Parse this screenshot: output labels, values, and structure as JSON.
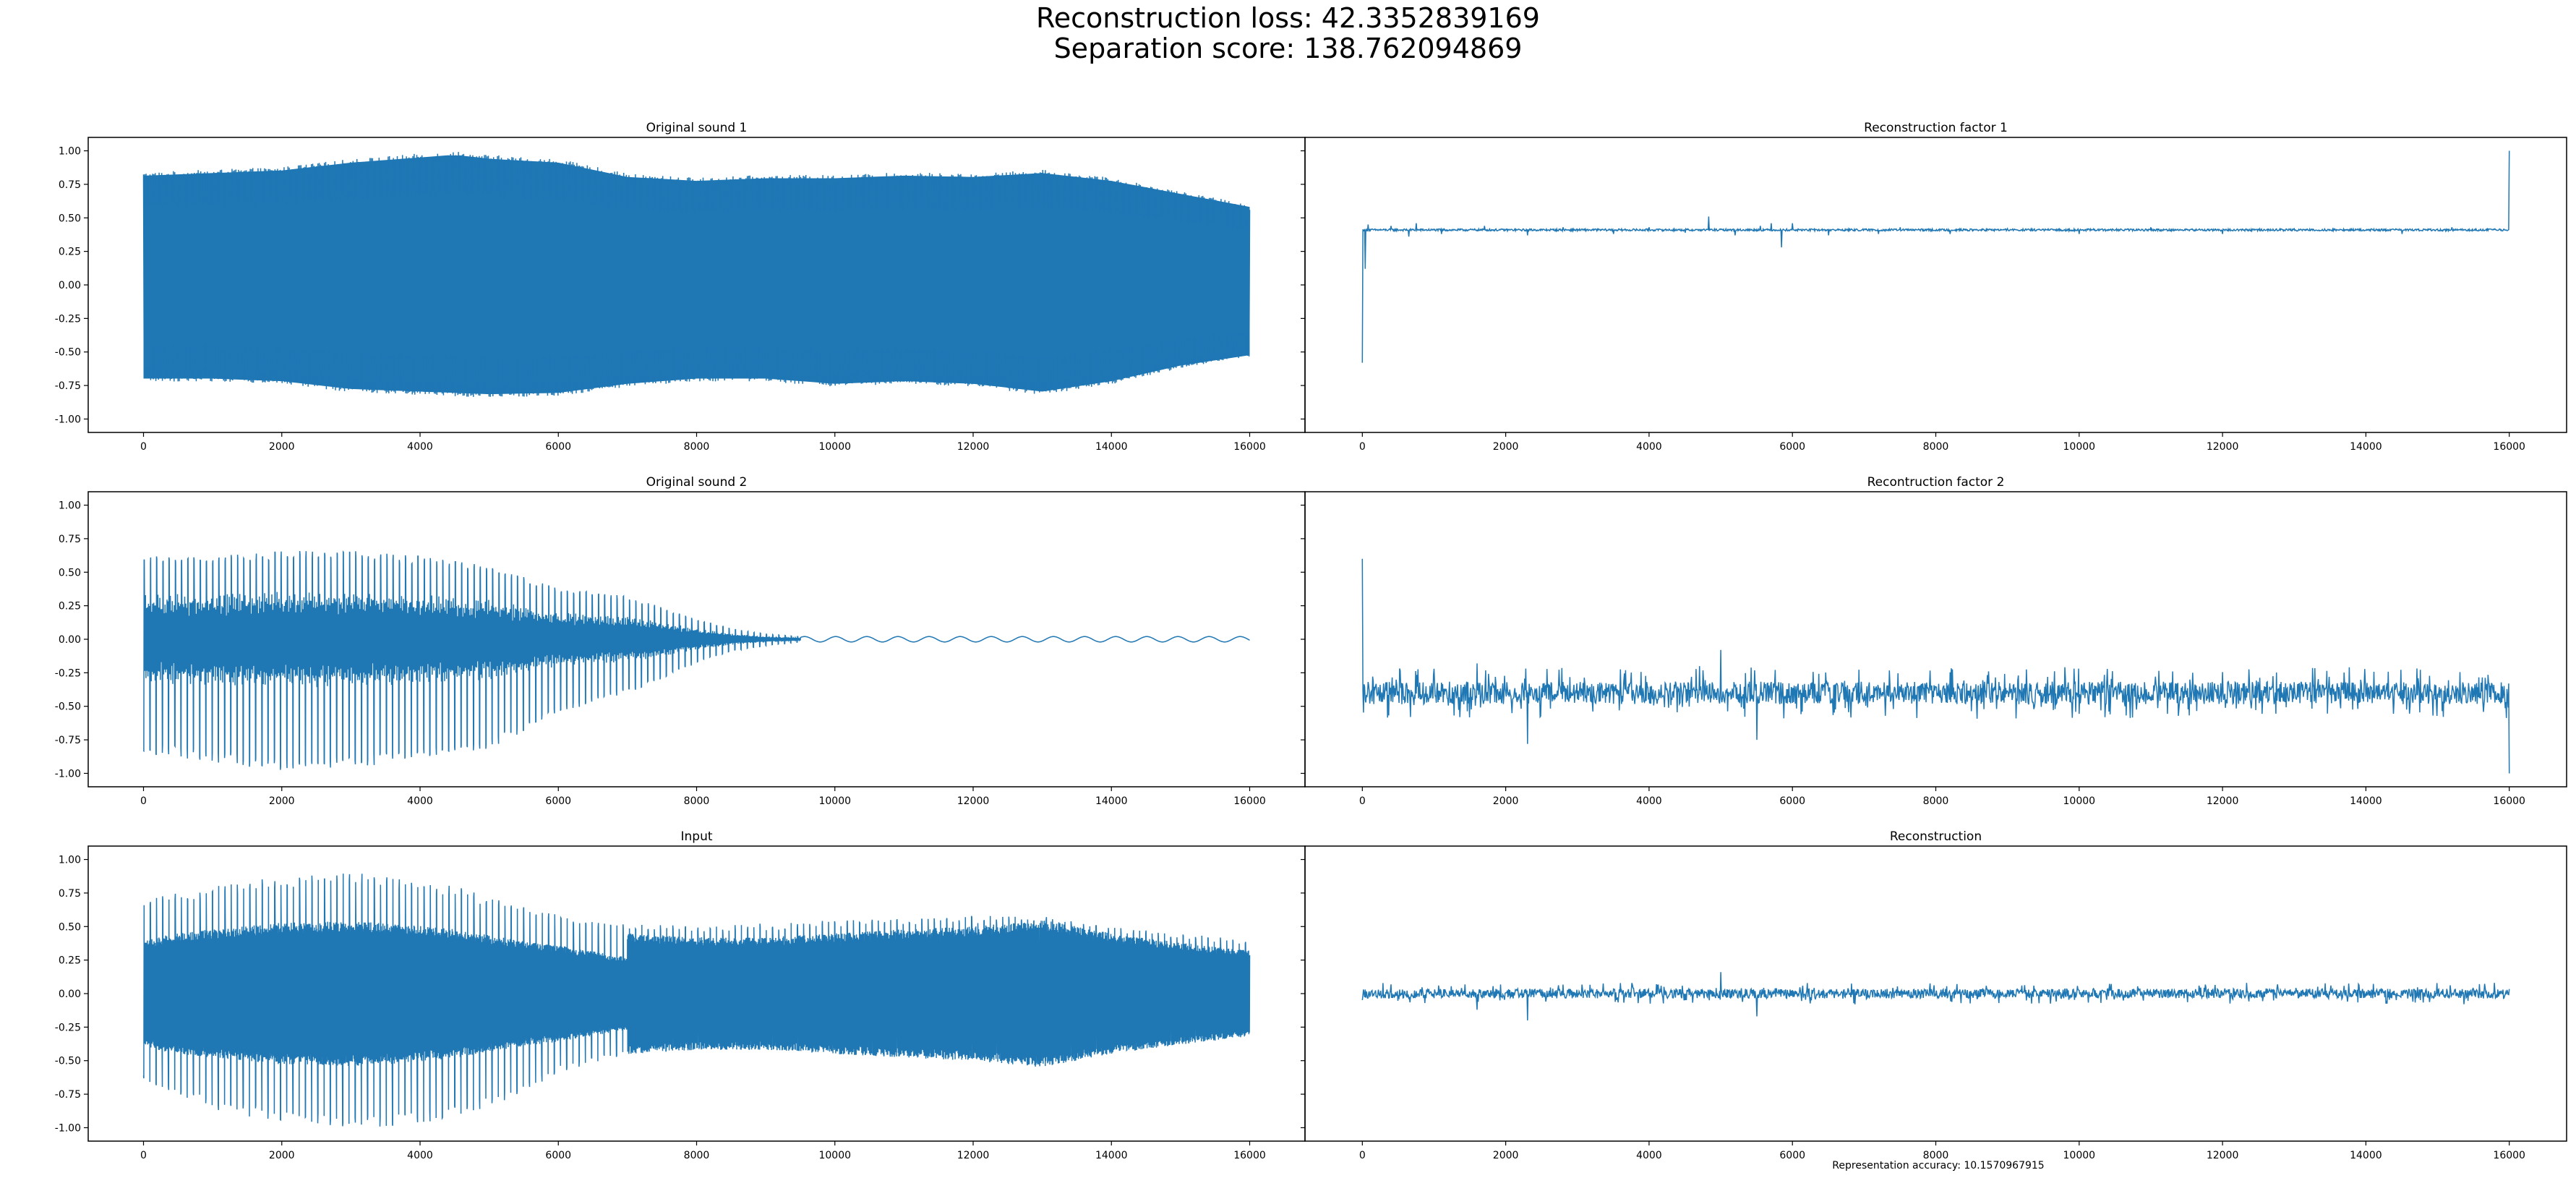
{
  "figure": {
    "suptitle_line1": "Reconstruction loss: 42.3352839169",
    "suptitle_line2": "Separation score: 138.762094869",
    "footer_label": "Representation accuracy: 10.1570967915"
  },
  "colors": {
    "series": "#1f77b4",
    "axis": "#000000",
    "background": "#ffffff"
  },
  "chart_data": [
    {
      "type": "line",
      "title": "Original sound 1",
      "xlabel": "",
      "ylabel": "",
      "xlim": [
        -800,
        16800
      ],
      "ylim": [
        -1.1,
        1.1
      ],
      "x_ticks": [
        0,
        2000,
        4000,
        6000,
        8000,
        10000,
        12000,
        14000,
        16000
      ],
      "y_ticks": [
        -1.0,
        -0.75,
        -0.5,
        -0.25,
        0.0,
        0.25,
        0.5,
        0.75,
        1.0
      ],
      "y_ticklabels_shown": true,
      "grid": false,
      "series": [
        {
          "style": "dense_oscillation",
          "x_range": [
            0,
            16000
          ],
          "upper_envelope": [
            [
              0,
              0.84
            ],
            [
              1000,
              0.86
            ],
            [
              2000,
              0.88
            ],
            [
              3000,
              0.94
            ],
            [
              4000,
              0.98
            ],
            [
              4500,
              1.0
            ],
            [
              5000,
              0.97
            ],
            [
              6000,
              0.94
            ],
            [
              7000,
              0.83
            ],
            [
              8000,
              0.8
            ],
            [
              9000,
              0.82
            ],
            [
              10000,
              0.82
            ],
            [
              11000,
              0.84
            ],
            [
              12000,
              0.83
            ],
            [
              13000,
              0.86
            ],
            [
              14000,
              0.8
            ],
            [
              15000,
              0.7
            ],
            [
              16000,
              0.6
            ]
          ],
          "lower_envelope": [
            [
              0,
              -0.72
            ],
            [
              1000,
              -0.72
            ],
            [
              2000,
              -0.74
            ],
            [
              3000,
              -0.8
            ],
            [
              4000,
              -0.82
            ],
            [
              5000,
              -0.84
            ],
            [
              6000,
              -0.83
            ],
            [
              7000,
              -0.76
            ],
            [
              8000,
              -0.72
            ],
            [
              9000,
              -0.72
            ],
            [
              10000,
              -0.76
            ],
            [
              11000,
              -0.74
            ],
            [
              12000,
              -0.76
            ],
            [
              13000,
              -0.82
            ],
            [
              14000,
              -0.74
            ],
            [
              15000,
              -0.62
            ],
            [
              16000,
              -0.54
            ]
          ]
        }
      ]
    },
    {
      "type": "line",
      "title": "Reconstruction factor 1",
      "xlabel": "",
      "ylabel": "",
      "xlim": [
        -800,
        16800
      ],
      "ylim": [
        -1.1,
        1.1
      ],
      "x_ticks": [
        0,
        2000,
        4000,
        6000,
        8000,
        10000,
        12000,
        14000,
        16000
      ],
      "y_ticks": [
        -1.0,
        -0.75,
        -0.5,
        -0.25,
        0.0,
        0.25,
        0.5,
        0.75,
        1.0
      ],
      "y_ticklabels_shown": false,
      "grid": false,
      "series": [
        {
          "style": "baseline_with_spikes",
          "x_range": [
            0,
            16000
          ],
          "baseline": 0.41,
          "noise": 0.008,
          "spikes": [
            [
              0,
              -0.58
            ],
            [
              40,
              0.12
            ],
            [
              80,
              0.45
            ],
            [
              400,
              0.44
            ],
            [
              650,
              0.36
            ],
            [
              750,
              0.46
            ],
            [
              1100,
              0.38
            ],
            [
              1700,
              0.44
            ],
            [
              2300,
              0.37
            ],
            [
              2800,
              0.43
            ],
            [
              3500,
              0.38
            ],
            [
              4000,
              0.43
            ],
            [
              4500,
              0.39
            ],
            [
              4830,
              0.51
            ],
            [
              5200,
              0.37
            ],
            [
              5550,
              0.44
            ],
            [
              5700,
              0.46
            ],
            [
              5850,
              0.28
            ],
            [
              6000,
              0.46
            ],
            [
              6500,
              0.37
            ],
            [
              7200,
              0.38
            ],
            [
              7500,
              0.43
            ],
            [
              8200,
              0.38
            ],
            [
              9000,
              0.42
            ],
            [
              10000,
              0.38
            ],
            [
              11000,
              0.43
            ],
            [
              12000,
              0.38
            ],
            [
              13000,
              0.42
            ],
            [
              14500,
              0.38
            ],
            [
              15200,
              0.43
            ],
            [
              16000,
              1.0
            ]
          ]
        }
      ]
    },
    {
      "type": "line",
      "title": "Original sound 2",
      "xlabel": "",
      "ylabel": "",
      "xlim": [
        -800,
        16800
      ],
      "ylim": [
        -1.1,
        1.1
      ],
      "x_ticks": [
        0,
        2000,
        4000,
        6000,
        8000,
        10000,
        12000,
        14000,
        16000
      ],
      "y_ticks": [
        -1.0,
        -0.75,
        -0.5,
        -0.25,
        0.0,
        0.25,
        0.5,
        0.75,
        1.0
      ],
      "y_ticklabels_shown": true,
      "grid": false,
      "series": [
        {
          "style": "decaying_pulses",
          "x_range": [
            0,
            16000
          ],
          "pulse_period": 90,
          "tail_period": 450,
          "tail_amplitude": 0.02,
          "upper_envelope": [
            [
              0,
              0.62
            ],
            [
              1000,
              0.63
            ],
            [
              2000,
              0.66
            ],
            [
              3000,
              0.66
            ],
            [
              4000,
              0.62
            ],
            [
              5000,
              0.55
            ],
            [
              6000,
              0.38
            ],
            [
              7000,
              0.32
            ],
            [
              7500,
              0.24
            ],
            [
              8000,
              0.15
            ],
            [
              8500,
              0.08
            ],
            [
              9000,
              0.04
            ],
            [
              9500,
              0.02
            ],
            [
              16000,
              0.02
            ]
          ],
          "lower_envelope": [
            [
              0,
              -0.85
            ],
            [
              1000,
              -0.92
            ],
            [
              2000,
              -0.98
            ],
            [
              3000,
              -0.96
            ],
            [
              4000,
              -0.9
            ],
            [
              5000,
              -0.82
            ],
            [
              6000,
              -0.55
            ],
            [
              7000,
              -0.4
            ],
            [
              7500,
              -0.3
            ],
            [
              8000,
              -0.18
            ],
            [
              8500,
              -0.09
            ],
            [
              9000,
              -0.05
            ],
            [
              9500,
              -0.02
            ],
            [
              16000,
              -0.02
            ]
          ]
        }
      ]
    },
    {
      "type": "line",
      "title": "Recontruction factor 2",
      "xlabel": "",
      "ylabel": "",
      "xlim": [
        -800,
        16800
      ],
      "ylim": [
        -1.1,
        1.1
      ],
      "x_ticks": [
        0,
        2000,
        4000,
        6000,
        8000,
        10000,
        12000,
        14000,
        16000
      ],
      "y_ticks": [
        -1.0,
        -0.75,
        -0.5,
        -0.25,
        0.0,
        0.25,
        0.5,
        0.75,
        1.0
      ],
      "y_ticklabels_shown": false,
      "grid": false,
      "series": [
        {
          "style": "noisy_baseline",
          "x_range": [
            0,
            16000
          ],
          "baseline": -0.4,
          "noise": 0.12,
          "spikes": [
            [
              0,
              0.6
            ],
            [
              16000,
              -1.0
            ],
            [
              2300,
              -0.78
            ],
            [
              5000,
              -0.08
            ],
            [
              5500,
              -0.75
            ],
            [
              1600,
              -0.18
            ],
            [
              4700,
              -0.2
            ]
          ]
        }
      ]
    },
    {
      "type": "line",
      "title": "Input",
      "xlabel": "",
      "ylabel": "",
      "xlim": [
        -800,
        16800
      ],
      "ylim": [
        -1.1,
        1.1
      ],
      "x_ticks": [
        0,
        2000,
        4000,
        6000,
        8000,
        10000,
        12000,
        14000,
        16000
      ],
      "y_ticks": [
        -1.0,
        -0.75,
        -0.5,
        -0.25,
        0.0,
        0.25,
        0.5,
        0.75,
        1.0
      ],
      "y_ticklabels_shown": true,
      "grid": false,
      "series": [
        {
          "style": "pulses_over_carrier",
          "x_range": [
            0,
            16000
          ],
          "pulse_period": 90,
          "upper_envelope": [
            [
              0,
              0.7
            ],
            [
              1000,
              0.8
            ],
            [
              2000,
              0.88
            ],
            [
              3000,
              0.9
            ],
            [
              3500,
              0.88
            ],
            [
              4500,
              0.8
            ],
            [
              5500,
              0.65
            ],
            [
              6500,
              0.55
            ],
            [
              8000,
              0.5
            ],
            [
              10000,
              0.55
            ],
            [
              12000,
              0.58
            ],
            [
              13000,
              0.58
            ],
            [
              14000,
              0.5
            ],
            [
              15000,
              0.45
            ],
            [
              16000,
              0.4
            ]
          ],
          "lower_envelope": [
            [
              0,
              -0.65
            ],
            [
              1000,
              -0.88
            ],
            [
              2000,
              -0.95
            ],
            [
              3000,
              -1.0
            ],
            [
              4000,
              -0.98
            ],
            [
              5000,
              -0.85
            ],
            [
              6000,
              -0.6
            ],
            [
              7000,
              -0.45
            ],
            [
              8000,
              -0.42
            ],
            [
              9000,
              -0.42
            ],
            [
              10000,
              -0.45
            ],
            [
              11000,
              -0.48
            ],
            [
              12000,
              -0.5
            ],
            [
              13000,
              -0.55
            ],
            [
              14000,
              -0.45
            ],
            [
              15000,
              -0.38
            ],
            [
              16000,
              -0.32
            ]
          ]
        }
      ]
    },
    {
      "type": "line",
      "title": "Reconstruction",
      "xlabel": "",
      "ylabel": "",
      "xlim": [
        -800,
        16800
      ],
      "ylim": [
        -1.1,
        1.1
      ],
      "x_ticks": [
        0,
        2000,
        4000,
        6000,
        8000,
        10000,
        12000,
        14000,
        16000
      ],
      "y_ticks": [
        -1.0,
        -0.75,
        -0.5,
        -0.25,
        0.0,
        0.25,
        0.5,
        0.75,
        1.0
      ],
      "y_ticklabels_shown": false,
      "grid": false,
      "series": [
        {
          "style": "noisy_baseline",
          "x_range": [
            0,
            16000
          ],
          "baseline": 0.0,
          "noise": 0.05,
          "spikes": [
            [
              2300,
              -0.2
            ],
            [
              5000,
              0.16
            ],
            [
              5500,
              -0.17
            ],
            [
              1600,
              -0.12
            ]
          ]
        }
      ]
    }
  ]
}
